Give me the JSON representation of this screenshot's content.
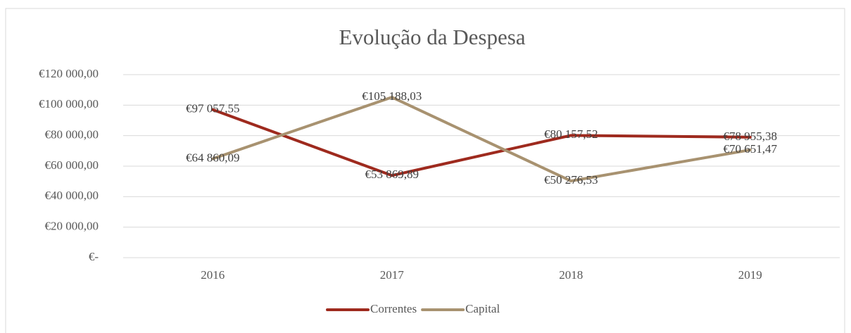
{
  "chart_data": {
    "type": "line",
    "title": "Evolução da Despesa",
    "categories": [
      "2016",
      "2017",
      "2018",
      "2019"
    ],
    "series": [
      {
        "name": "Correntes",
        "color": "#9e2a1e",
        "values": [
          97057.55,
          53869.89,
          80157.52,
          78955.38
        ],
        "value_labels": [
          "€97 057,55",
          "€53 869,89",
          "€80 157,52",
          "€78 955,38"
        ]
      },
      {
        "name": "Capital",
        "color": "#a89270",
        "values": [
          64860.09,
          105188.03,
          50276.53,
          70651.47
        ],
        "value_labels": [
          "€64 860,09",
          "€105 188,03",
          "€50 276,53",
          "€70 651,47"
        ]
      }
    ],
    "ylim": [
      0,
      120000
    ],
    "yticks": [
      {
        "value": 0,
        "label": "€-"
      },
      {
        "value": 20000,
        "label": "€20 000,00"
      },
      {
        "value": 40000,
        "label": "€40 000,00"
      },
      {
        "value": 60000,
        "label": "€60 000,00"
      },
      {
        "value": 80000,
        "label": "€80 000,00"
      },
      {
        "value": 100000,
        "label": "€100 000,00"
      },
      {
        "value": 120000,
        "label": "€120 000,00"
      }
    ],
    "grid": true,
    "legend": "bottom"
  }
}
